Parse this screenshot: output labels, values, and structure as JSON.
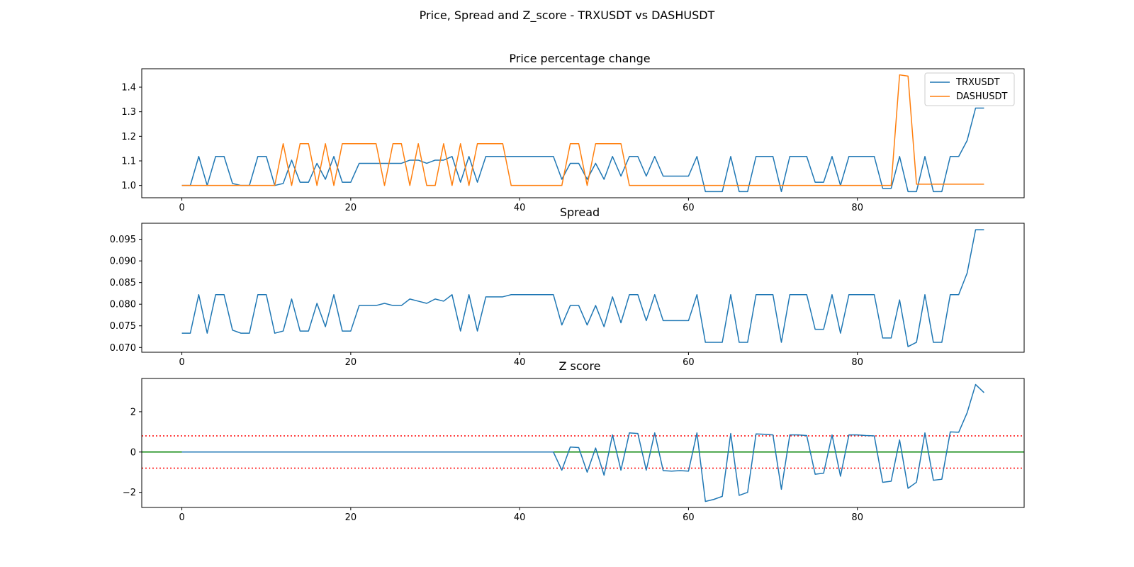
{
  "figure": {
    "title": "Price, Spread and Z_score - TRXUSDT vs DASHUSDT"
  },
  "colors": {
    "trx": "#1f77b4",
    "dash": "#ff7f0e",
    "threshold": "#ff0000",
    "zero": "#008000"
  },
  "chart_data": [
    {
      "type": "line",
      "title": "Price percentage change",
      "xlim": [
        -4.75,
        99.75
      ],
      "ylim": [
        0.95,
        1.475
      ],
      "xticks": [
        0,
        20,
        40,
        60,
        80
      ],
      "yticks": [
        1.0,
        1.1,
        1.2,
        1.3,
        1.4
      ],
      "ytick_decimals": 1,
      "legend": "top-right",
      "series": [
        {
          "name": "TRXUSDT",
          "color": "#1f77b4",
          "values": [
            1.0,
            1.0,
            1.118,
            1.0,
            1.118,
            1.118,
            1.008,
            1.0,
            1.0,
            1.118,
            1.118,
            1.0,
            1.008,
            1.103,
            1.013,
            1.013,
            1.09,
            1.025,
            1.118,
            1.013,
            1.013,
            1.09,
            1.09,
            1.09,
            1.09,
            1.09,
            1.09,
            1.103,
            1.103,
            1.09,
            1.103,
            1.103,
            1.118,
            1.013,
            1.118,
            1.013,
            1.118,
            1.118,
            1.118,
            1.118,
            1.118,
            1.118,
            1.118,
            1.118,
            1.118,
            1.025,
            1.09,
            1.09,
            1.025,
            1.09,
            1.025,
            1.118,
            1.038,
            1.118,
            1.118,
            1.038,
            1.118,
            1.038,
            1.038,
            1.038,
            1.038,
            1.118,
            0.975,
            0.975,
            0.975,
            1.118,
            0.975,
            0.975,
            1.118,
            1.118,
            1.118,
            0.975,
            1.118,
            1.118,
            1.118,
            1.013,
            1.013,
            1.118,
            1.0,
            1.118,
            1.118,
            1.118,
            1.118,
            0.988,
            0.988,
            1.118,
            0.975,
            0.975,
            1.118,
            0.975,
            0.975,
            1.118,
            1.118,
            1.183,
            1.315,
            1.315
          ]
        },
        {
          "name": "DASHUSDT",
          "color": "#ff7f0e",
          "values": [
            1.0,
            1.0,
            1.0,
            1.0,
            1.0,
            1.0,
            1.0,
            1.0,
            1.0,
            1.0,
            1.0,
            1.0,
            1.17,
            1.0,
            1.17,
            1.17,
            1.0,
            1.17,
            1.0,
            1.17,
            1.17,
            1.17,
            1.17,
            1.17,
            1.0,
            1.17,
            1.17,
            1.0,
            1.17,
            1.0,
            1.0,
            1.17,
            1.0,
            1.17,
            1.0,
            1.17,
            1.17,
            1.17,
            1.17,
            1.0,
            1.0,
            1.0,
            1.0,
            1.0,
            1.0,
            1.0,
            1.17,
            1.17,
            1.0,
            1.17,
            1.17,
            1.17,
            1.17,
            1.0,
            1.0,
            1.0,
            1.0,
            1.0,
            1.0,
            1.0,
            1.0,
            1.0,
            1.0,
            1.0,
            1.0,
            1.0,
            1.0,
            1.0,
            1.0,
            1.0,
            1.0,
            1.0,
            1.0,
            1.0,
            1.0,
            1.0,
            1.0,
            1.0,
            1.0,
            1.0,
            1.0,
            1.0,
            1.0,
            1.0,
            1.0,
            1.45,
            1.445,
            1.005,
            1.005,
            1.005,
            1.005,
            1.005,
            1.005,
            1.005,
            1.005,
            1.005
          ]
        }
      ]
    },
    {
      "type": "line",
      "title": "Spread",
      "xlim": [
        -4.75,
        99.75
      ],
      "ylim": [
        0.0689,
        0.0987
      ],
      "xticks": [
        0,
        20,
        40,
        60,
        80
      ],
      "yticks": [
        0.07,
        0.075,
        0.08,
        0.085,
        0.09,
        0.095
      ],
      "ytick_decimals": 3,
      "series": [
        {
          "color": "#1f77b4",
          "values": [
            0.0733,
            0.0733,
            0.0822,
            0.0733,
            0.0822,
            0.0822,
            0.074,
            0.0733,
            0.0733,
            0.0822,
            0.0822,
            0.0733,
            0.0738,
            0.0812,
            0.0738,
            0.0738,
            0.0802,
            0.0748,
            0.0822,
            0.0738,
            0.0738,
            0.0797,
            0.0797,
            0.0797,
            0.0802,
            0.0797,
            0.0797,
            0.0812,
            0.0807,
            0.0802,
            0.0812,
            0.0807,
            0.0822,
            0.0738,
            0.0822,
            0.0738,
            0.0817,
            0.0817,
            0.0817,
            0.0822,
            0.0822,
            0.0822,
            0.0822,
            0.0822,
            0.0822,
            0.0752,
            0.0797,
            0.0797,
            0.0752,
            0.0797,
            0.0748,
            0.0817,
            0.0757,
            0.0822,
            0.0822,
            0.0762,
            0.0822,
            0.0762,
            0.0762,
            0.0762,
            0.0762,
            0.0822,
            0.0712,
            0.0712,
            0.0712,
            0.0822,
            0.0712,
            0.0712,
            0.0822,
            0.0822,
            0.0822,
            0.0712,
            0.0822,
            0.0822,
            0.0822,
            0.0742,
            0.0742,
            0.0822,
            0.0733,
            0.0822,
            0.0822,
            0.0822,
            0.0822,
            0.0722,
            0.0722,
            0.081,
            0.0702,
            0.0712,
            0.0822,
            0.0712,
            0.0712,
            0.0822,
            0.0822,
            0.0872,
            0.0972,
            0.0972
          ]
        }
      ]
    },
    {
      "type": "line",
      "title": "Z score",
      "xlim": [
        -4.75,
        99.75
      ],
      "ylim": [
        -2.75,
        3.65
      ],
      "xticks": [
        0,
        20,
        40,
        60,
        80
      ],
      "yticks": [
        -2,
        0,
        2
      ],
      "ytick_decimals": 0,
      "hlines": [
        {
          "y": 0.8,
          "color": "#ff0000",
          "style": "dotted"
        },
        {
          "y": -0.8,
          "color": "#ff0000",
          "style": "dotted"
        },
        {
          "y": 0,
          "color": "#008000",
          "style": "solid"
        }
      ],
      "series": [
        {
          "color": "#1f77b4",
          "values": [
            0,
            0,
            0,
            0,
            0,
            0,
            0,
            0,
            0,
            0,
            0,
            0,
            0,
            0,
            0,
            0,
            0,
            0,
            0,
            0,
            0,
            0,
            0,
            0,
            0,
            0,
            0,
            0,
            0,
            0,
            0,
            0,
            0,
            0,
            0,
            0,
            0,
            0,
            0,
            0,
            0,
            0,
            0,
            0,
            0,
            -0.9,
            0.25,
            0.22,
            -1.0,
            0.2,
            -1.15,
            0.85,
            -0.9,
            0.95,
            0.92,
            -0.9,
            0.95,
            -0.92,
            -0.95,
            -0.92,
            -0.95,
            0.95,
            -2.45,
            -2.35,
            -2.2,
            0.92,
            -2.15,
            -2.0,
            0.9,
            0.88,
            0.85,
            -1.85,
            0.85,
            0.85,
            0.82,
            -1.1,
            -1.05,
            0.85,
            -1.2,
            0.85,
            0.85,
            0.82,
            0.8,
            -1.5,
            -1.45,
            0.6,
            -1.8,
            -1.5,
            0.95,
            -1.4,
            -1.35,
            1.0,
            0.98,
            1.95,
            3.35,
            2.95
          ]
        }
      ]
    }
  ]
}
